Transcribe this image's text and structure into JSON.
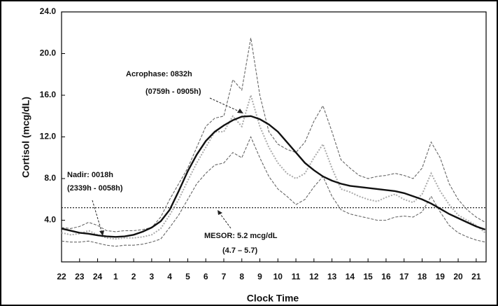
{
  "chart_data": {
    "type": "line",
    "x_label": "Clock Time",
    "y_label": "Cortisol (mcg/dL)",
    "x": [
      0,
      0.5,
      1,
      1.5,
      2,
      2.5,
      3,
      3.5,
      4,
      4.5,
      5,
      5.5,
      6,
      6.5,
      7,
      7.5,
      8,
      8.5,
      9,
      9.5,
      10,
      10.5,
      11,
      11.5,
      12,
      12.5,
      13,
      13.5,
      14,
      14.5,
      15,
      15.5,
      16,
      16.5,
      17,
      17.5,
      18,
      18.5,
      19,
      19.5,
      20,
      20.5,
      21,
      21.5,
      22,
      22.5,
      23,
      23.5
    ],
    "xlim": [
      0,
      23.55
    ],
    "xticks": [
      {
        "value": 0,
        "label": "22"
      },
      {
        "value": 1,
        "label": "23"
      },
      {
        "value": 2,
        "label": "24"
      },
      {
        "value": 3,
        "label": "1"
      },
      {
        "value": 4,
        "label": "2"
      },
      {
        "value": 5,
        "label": "3"
      },
      {
        "value": 6,
        "label": "4"
      },
      {
        "value": 7,
        "label": "5"
      },
      {
        "value": 8,
        "label": "6"
      },
      {
        "value": 9,
        "label": "7"
      },
      {
        "value": 10,
        "label": "8"
      },
      {
        "value": 11,
        "label": "9"
      },
      {
        "value": 12,
        "label": "10"
      },
      {
        "value": 13,
        "label": "11"
      },
      {
        "value": 14,
        "label": "12"
      },
      {
        "value": 15,
        "label": "13"
      },
      {
        "value": 16,
        "label": "14"
      },
      {
        "value": 17,
        "label": "15"
      },
      {
        "value": 18,
        "label": "16"
      },
      {
        "value": 19,
        "label": "17"
      },
      {
        "value": 20,
        "label": "18"
      },
      {
        "value": 21,
        "label": "19"
      },
      {
        "value": 22,
        "label": "20"
      },
      {
        "value": 23,
        "label": "21"
      }
    ],
    "ylim": [
      0,
      24
    ],
    "yticks": [
      {
        "value": 4,
        "label": "4.0"
      },
      {
        "value": 8,
        "label": "8.0"
      },
      {
        "value": 12,
        "label": "12.0"
      },
      {
        "value": 16,
        "label": "16.0"
      },
      {
        "value": 20,
        "label": "20.0"
      },
      {
        "value": 24,
        "label": "24.0"
      }
    ],
    "series": [
      {
        "color": "#666666",
        "style": "dashed",
        "values": [
          3.3,
          3.2,
          3.4,
          3.8,
          3.5,
          3.0,
          2.9,
          3.0,
          3.0,
          3.1,
          3.3,
          4.3,
          6.0,
          7.5,
          9.0,
          11.0,
          13.0,
          13.8,
          14.0,
          17.5,
          16.5,
          21.5,
          16.0,
          12.5,
          11.3,
          10.8,
          10.5,
          11.5,
          13.5,
          15.0,
          12.5,
          9.8,
          9.0,
          8.3,
          8.0,
          8.2,
          8.3,
          8.5,
          8.3,
          8.0,
          9.0,
          11.5,
          10.0,
          7.5,
          6.0,
          5.0,
          4.3,
          3.8
        ]
      },
      {
        "color": "#aaaaaa",
        "style": "dotted",
        "values": [
          2.8,
          2.6,
          2.7,
          3.0,
          2.6,
          2.3,
          2.2,
          2.3,
          2.3,
          2.4,
          2.6,
          3.2,
          4.5,
          6.0,
          7.8,
          9.5,
          11.0,
          12.5,
          12.5,
          14.0,
          13.0,
          16.0,
          13.0,
          11.0,
          9.5,
          8.5,
          8.0,
          8.5,
          10.0,
          11.3,
          9.0,
          7.0,
          6.7,
          6.3,
          6.0,
          5.8,
          6.2,
          6.5,
          6.0,
          5.7,
          6.5,
          8.5,
          6.8,
          5.5,
          4.5,
          4.0,
          3.5,
          2.8
        ]
      },
      {
        "color": "#666666",
        "style": "dashed",
        "values": [
          2.0,
          1.9,
          1.9,
          2.0,
          1.8,
          1.6,
          1.5,
          1.6,
          1.6,
          1.7,
          1.9,
          2.2,
          3.3,
          4.5,
          6.0,
          7.5,
          8.5,
          9.3,
          9.5,
          10.5,
          10.0,
          12.0,
          10.0,
          8.2,
          7.0,
          6.3,
          5.5,
          6.0,
          7.2,
          8.2,
          6.3,
          5.0,
          4.6,
          4.4,
          4.2,
          4.0,
          4.0,
          4.3,
          4.4,
          4.3,
          4.8,
          6.3,
          4.8,
          3.5,
          2.8,
          2.4,
          2.1,
          1.9
        ]
      },
      {
        "color": "#111111",
        "style": "solid",
        "values": [
          3.2,
          3.0,
          2.8,
          2.7,
          2.55,
          2.45,
          2.4,
          2.45,
          2.6,
          2.9,
          3.3,
          3.9,
          5.0,
          6.8,
          8.7,
          10.3,
          11.6,
          12.5,
          13.1,
          13.6,
          13.95,
          14.0,
          13.7,
          13.2,
          12.5,
          11.5,
          10.5,
          9.5,
          8.8,
          8.2,
          7.8,
          7.5,
          7.3,
          7.2,
          7.1,
          7.0,
          6.9,
          6.8,
          6.6,
          6.3,
          6.0,
          5.6,
          5.1,
          4.6,
          4.2,
          3.8,
          3.4,
          3.1
        ]
      }
    ],
    "reference_line": {
      "value": 5.2,
      "color": "#222222"
    },
    "annotations": [
      "Acrophase: 0832h",
      "(0759h - 0905h)",
      "Nadir: 0018h",
      "(2339h - 0058h)",
      "MESOR: 5.2 mcg/dL",
      "(4.7 – 5.7)"
    ]
  }
}
